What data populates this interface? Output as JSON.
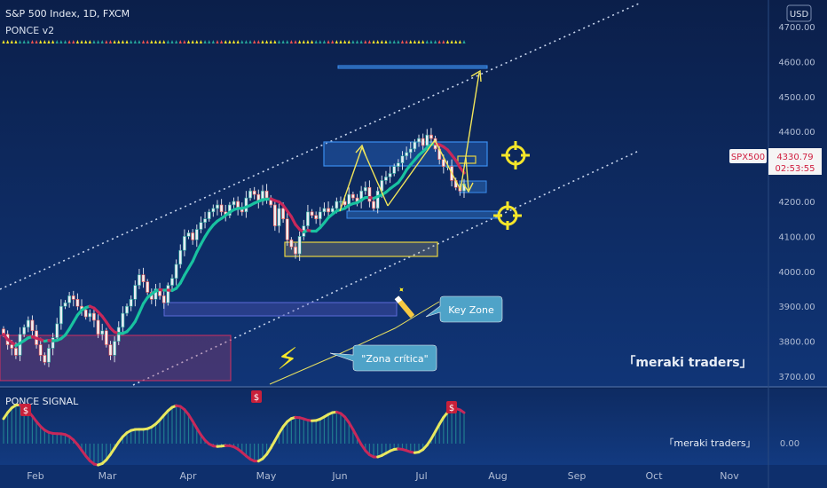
{
  "header": {
    "symbol_line": "S&P 500 Index, 1D, FXCM",
    "indicator": "PONCE v2",
    "currency_button": "USD"
  },
  "price_axis": {
    "ticks": [
      "4700.00",
      "4600.00",
      "4500.00",
      "4400.00",
      "4300.00",
      "4200.00",
      "4100.00",
      "4000.00",
      "3900.00",
      "3800.00",
      "3700.00"
    ],
    "tick_values": [
      4700,
      4600,
      4500,
      4400,
      4300,
      4200,
      4100,
      4000,
      3900,
      3800,
      3700
    ],
    "symbol_tag": "SPX500",
    "last_price": "4330.79",
    "countdown": "02:53:55",
    "range": [
      3675,
      4760
    ]
  },
  "time_axis": {
    "labels": [
      "Feb",
      "Mar",
      "Apr",
      "May",
      "Jun",
      "Jul",
      "Aug",
      "Sep",
      "Oct",
      "Nov"
    ]
  },
  "annotations": {
    "key_zone": "Key Zone",
    "zona_critica": "\"Zona crítica\"",
    "watermark_main": "「meraki traders」",
    "watermark_sub": "「meraki traders」"
  },
  "signal_pane": {
    "title": "PONCE SIGNAL",
    "zero_label": "0.00",
    "markers": [
      "$",
      "$",
      "$"
    ]
  },
  "chart_data": {
    "type": "candlestick",
    "title": "S&P 500 Index, 1D, FXCM",
    "x_range": [
      "Jan",
      "Nov"
    ],
    "y_range": [
      3675,
      4760
    ],
    "moving_average_note": "",
    "key_levels": {
      "target_zone": 4580,
      "upper_box": [
        4300,
        4370
      ],
      "lower_box": [
        4040,
        4080
      ],
      "support_line": 4160,
      "key_zone_box": [
        3880,
        3915
      ],
      "critical_zone_box": [
        3700,
        3820
      ]
    },
    "closes": [
      3820,
      3790,
      3780,
      3760,
      3820,
      3840,
      3860,
      3830,
      3790,
      3760,
      3740,
      3780,
      3810,
      3850,
      3900,
      3910,
      3930,
      3920,
      3900,
      3890,
      3870,
      3880,
      3860,
      3820,
      3830,
      3790,
      3760,
      3800,
      3840,
      3880,
      3900,
      3920,
      3960,
      3990,
      3970,
      3940,
      3920,
      3950,
      3930,
      3910,
      3960,
      3980,
      4020,
      4060,
      4100,
      4110,
      4090,
      4120,
      4140,
      4150,
      4170,
      4180,
      4190,
      4170,
      4160,
      4190,
      4200,
      4180,
      4170,
      4210,
      4230,
      4220,
      4200,
      4230,
      4210,
      4190,
      4130,
      4180,
      4150,
      4090,
      4070,
      4050,
      4100,
      4130,
      4170,
      4160,
      4150,
      4170,
      4180,
      4170,
      4180,
      4200,
      4200,
      4190,
      4220,
      4210,
      4200,
      4230,
      4240,
      4200,
      4180,
      4230,
      4260,
      4270,
      4280,
      4300,
      4310,
      4330,
      4340,
      4350,
      4370,
      4380,
      4360,
      4390,
      4380,
      4350,
      4320,
      4300,
      4300,
      4260,
      4240,
      4230,
      4250
    ],
    "signal_markers": [
      "$",
      "$",
      "$"
    ]
  }
}
